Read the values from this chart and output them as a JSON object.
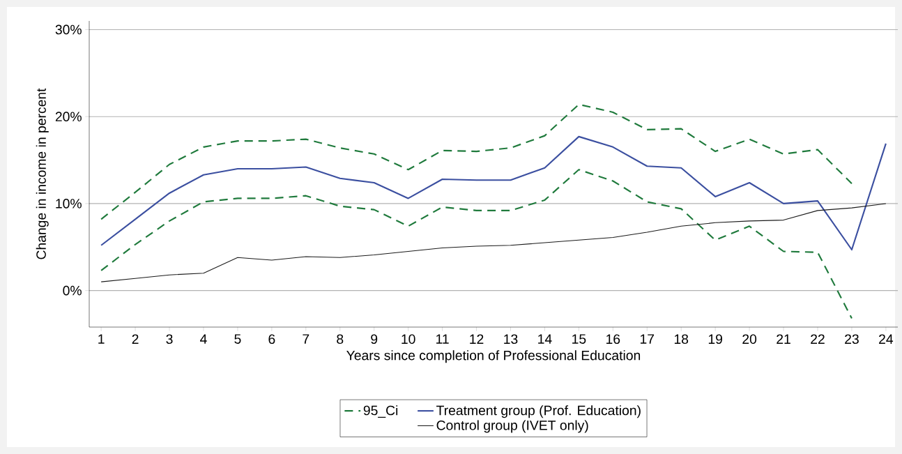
{
  "chart_data": {
    "type": "line",
    "xlabel": "Years since completion of Professional Education",
    "ylabel": "Change in income in percent",
    "x": [
      1,
      2,
      3,
      4,
      5,
      6,
      7,
      8,
      9,
      10,
      11,
      12,
      13,
      14,
      15,
      16,
      17,
      18,
      19,
      20,
      21,
      22,
      23,
      24
    ],
    "series": [
      {
        "name": "95_Ci",
        "color": "#1f7a3c",
        "line_style": "dashed",
        "values": [
          8.2,
          11.3,
          14.5,
          16.5,
          17.2,
          17.2,
          17.4,
          16.4,
          15.7,
          13.9,
          16.1,
          16.0,
          16.4,
          17.8,
          21.4,
          20.5,
          18.5,
          18.6,
          16.0,
          17.4,
          15.7,
          16.2,
          12.3,
          null
        ]
      },
      {
        "name": "Treatment group (Prof. Education)",
        "color": "#3b4fa0",
        "line_style": "solid",
        "values": [
          5.2,
          8.2,
          11.2,
          13.3,
          14.0,
          14.0,
          14.2,
          12.9,
          12.4,
          10.6,
          12.8,
          12.7,
          12.7,
          14.1,
          17.7,
          16.5,
          14.3,
          14.1,
          10.8,
          12.4,
          10.0,
          10.3,
          4.7,
          16.9
        ]
      },
      {
        "color": "#1f7a3c",
        "line_style": "dashed",
        "values": [
          2.3,
          5.3,
          8.0,
          10.2,
          10.6,
          10.6,
          10.9,
          9.7,
          9.3,
          7.4,
          9.6,
          9.2,
          9.2,
          10.4,
          13.9,
          12.6,
          10.2,
          9.4,
          5.8,
          7.4,
          4.5,
          4.4,
          -3.2,
          null
        ]
      },
      {
        "name": "Control group (IVET only)",
        "color": "#1a1a1a",
        "line_style": "solid",
        "values": [
          1.0,
          1.4,
          1.8,
          2.0,
          3.8,
          3.5,
          3.9,
          3.8,
          4.1,
          4.5,
          4.9,
          5.1,
          5.2,
          5.5,
          5.8,
          6.1,
          6.7,
          7.4,
          7.8,
          8.0,
          8.1,
          9.2,
          9.5,
          10.0
        ]
      }
    ],
    "xlim": [
      0.65,
      24.35
    ],
    "ylim": [
      -4.2,
      31
    ],
    "xticks": [
      1,
      2,
      3,
      4,
      5,
      6,
      7,
      8,
      9,
      10,
      11,
      12,
      13,
      14,
      15,
      16,
      17,
      18,
      19,
      20,
      21,
      22,
      23,
      24
    ],
    "yticks": [
      {
        "value": 0,
        "label": "0%"
      },
      {
        "value": 10,
        "label": "10%"
      },
      {
        "value": 20,
        "label": "20%"
      },
      {
        "value": 30,
        "label": "30%"
      }
    ],
    "grid": "y",
    "legend": "bottom"
  }
}
